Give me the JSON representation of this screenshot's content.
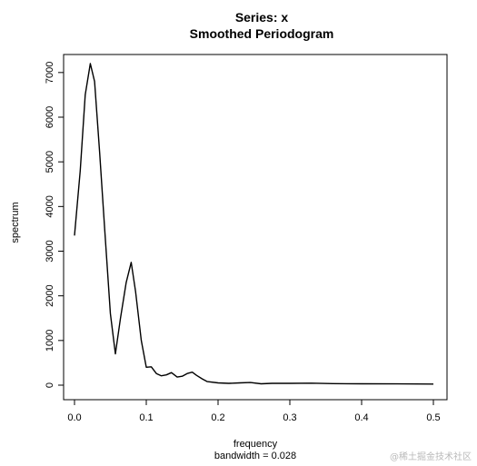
{
  "chart_data": {
    "type": "line",
    "title": "Series: x",
    "subtitle": "Smoothed Periodogram",
    "xlabel": "frequency",
    "ylabel": "spectrum",
    "sub_xlabel": "bandwidth = 0.028",
    "xlim": [
      0,
      0.5
    ],
    "ylim": [
      0,
      7200
    ],
    "x_ticks": [
      0.0,
      0.1,
      0.2,
      0.3,
      0.4,
      0.5
    ],
    "x_tick_labels": [
      "0.0",
      "0.1",
      "0.2",
      "0.3",
      "0.4",
      "0.5"
    ],
    "y_ticks": [
      0,
      1000,
      2000,
      3000,
      4000,
      5000,
      6000,
      7000
    ],
    "y_tick_labels": [
      "0",
      "1000",
      "2000",
      "3000",
      "4000",
      "5000",
      "6000",
      "7000"
    ],
    "grid": false,
    "line_color": "#000000",
    "series": [
      {
        "x": [
          0.0,
          0.008,
          0.015,
          0.022,
          0.028,
          0.035,
          0.042,
          0.05,
          0.057,
          0.064,
          0.072,
          0.079,
          0.085,
          0.093,
          0.1,
          0.107,
          0.114,
          0.121,
          0.128,
          0.135,
          0.143,
          0.15,
          0.157,
          0.164,
          0.17,
          0.178,
          0.185,
          0.2,
          0.215,
          0.23,
          0.245,
          0.26,
          0.275,
          0.3,
          0.33,
          0.36,
          0.4,
          0.45,
          0.5
        ],
        "y": [
          3350,
          4800,
          6500,
          7200,
          6800,
          5200,
          3500,
          1600,
          700,
          1500,
          2300,
          2750,
          2100,
          1000,
          400,
          410,
          260,
          210,
          230,
          280,
          180,
          200,
          260,
          290,
          220,
          140,
          80,
          50,
          40,
          50,
          60,
          30,
          40,
          40,
          45,
          35,
          30,
          28,
          25
        ]
      }
    ]
  },
  "watermark": "@稀土掘金技术社区"
}
